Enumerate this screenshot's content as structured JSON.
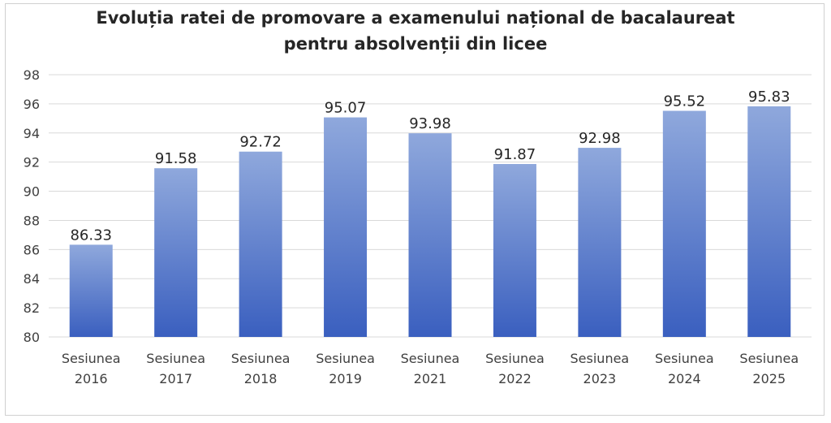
{
  "chart_data": {
    "type": "bar",
    "title_lines": [
      "Evoluția ratei de promovare a examenului național de bacalaureat",
      "pentru absolvenții din licee"
    ],
    "categories": [
      [
        "Sesiunea",
        "2016"
      ],
      [
        "Sesiunea",
        "2017"
      ],
      [
        "Sesiunea",
        "2018"
      ],
      [
        "Sesiunea",
        "2019"
      ],
      [
        "Sesiunea",
        "2021"
      ],
      [
        "Sesiunea",
        "2022"
      ],
      [
        "Sesiunea",
        "2023"
      ],
      [
        "Sesiunea",
        "2024"
      ],
      [
        "Sesiunea",
        "2025"
      ]
    ],
    "values": [
      86.33,
      91.58,
      92.72,
      95.07,
      93.98,
      91.87,
      92.98,
      95.52,
      95.83
    ],
    "value_labels": [
      "86.33",
      "91.58",
      "92.72",
      "95.07",
      "93.98",
      "91.87",
      "92.98",
      "95.52",
      "95.83"
    ],
    "ylim": [
      80,
      98
    ],
    "yticks": [
      80,
      82,
      84,
      86,
      88,
      90,
      92,
      94,
      96,
      98
    ],
    "xlabel": "",
    "ylabel": "",
    "grid": true,
    "legend": "none",
    "colors": {
      "bar_top": "#8FA8DC",
      "bar_bottom": "#3A5FBF",
      "grid": "#d9d9d9"
    }
  }
}
